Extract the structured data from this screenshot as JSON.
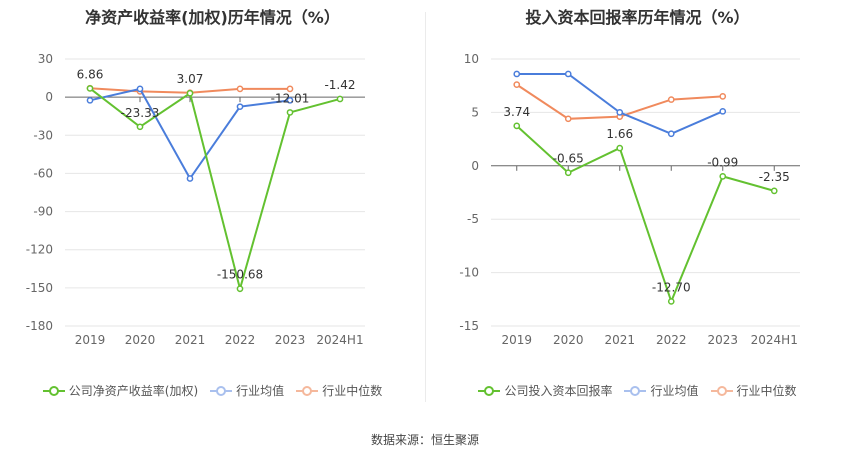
{
  "footer": {
    "source": "数据来源：恒生聚源"
  },
  "colors": {
    "company": "#63c130",
    "industry_avg": "#4a7ddb",
    "industry_median": "#f08a5d"
  },
  "chart_data": [
    {
      "type": "line",
      "title": "净资产收益率(加权)历年情况（%）",
      "categories": [
        "2019",
        "2020",
        "2021",
        "2022",
        "2023",
        "2024H1"
      ],
      "ylim": [
        -180,
        30
      ],
      "yticks": [
        30,
        0,
        -30,
        -60,
        -90,
        -120,
        -150,
        -180
      ],
      "grid": true,
      "legend_position": "bottom",
      "series": [
        {
          "name": "公司净资产收益率(加权)",
          "key": "company",
          "values": [
            6.86,
            -23.33,
            3.07,
            -150.68,
            -12.01,
            -1.42
          ],
          "labels": [
            "6.86",
            "-23.33",
            "3.07",
            "-150.68",
            "-12.01",
            "-1.42"
          ]
        },
        {
          "name": "行业均值",
          "key": "industry_avg",
          "values": [
            -2.5,
            6.5,
            -64.0,
            -7.5,
            -2.5,
            null
          ]
        },
        {
          "name": "行业中位数",
          "key": "industry_median",
          "values": [
            7.0,
            4.5,
            3.5,
            6.5,
            6.5,
            null
          ]
        }
      ]
    },
    {
      "type": "line",
      "title": "投入资本回报率历年情况（%）",
      "categories": [
        "2019",
        "2020",
        "2021",
        "2022",
        "2023",
        "2024H1"
      ],
      "ylim": [
        -15,
        10
      ],
      "yticks": [
        10,
        5,
        0,
        -5,
        -10,
        -15
      ],
      "grid": true,
      "legend_position": "bottom",
      "series": [
        {
          "name": "公司投入资本回报率",
          "key": "company",
          "values": [
            3.74,
            -0.65,
            1.66,
            -12.7,
            -0.99,
            -2.35
          ],
          "labels": [
            "3.74",
            "-0.65",
            "1.66",
            "-12.70",
            "-0.99",
            "-2.35"
          ]
        },
        {
          "name": "行业均值",
          "key": "industry_avg",
          "values": [
            8.6,
            8.6,
            5.0,
            3.0,
            5.1,
            null
          ]
        },
        {
          "name": "行业中位数",
          "key": "industry_median",
          "values": [
            7.6,
            4.4,
            4.6,
            6.2,
            6.5,
            null
          ]
        }
      ]
    }
  ]
}
